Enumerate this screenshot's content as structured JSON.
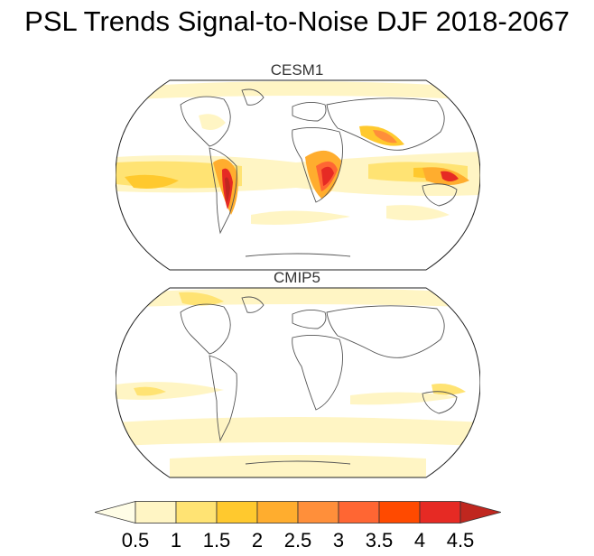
{
  "title": "PSL Trends Signal-to-Noise DJF 2018-2067",
  "panels": [
    {
      "label": "CESM1"
    },
    {
      "label": "CMIP5"
    }
  ],
  "colorbar": {
    "ticks": [
      "0.5",
      "1",
      "1.5",
      "2",
      "2.5",
      "3",
      "3.5",
      "4",
      "4.5"
    ],
    "colors": [
      "#fffde6",
      "#fff5c4",
      "#ffe373",
      "#ffc92e",
      "#ffad2e",
      "#ff8f3a",
      "#ff6633",
      "#ff4a00",
      "#e62a24",
      "#c0271f"
    ]
  }
}
